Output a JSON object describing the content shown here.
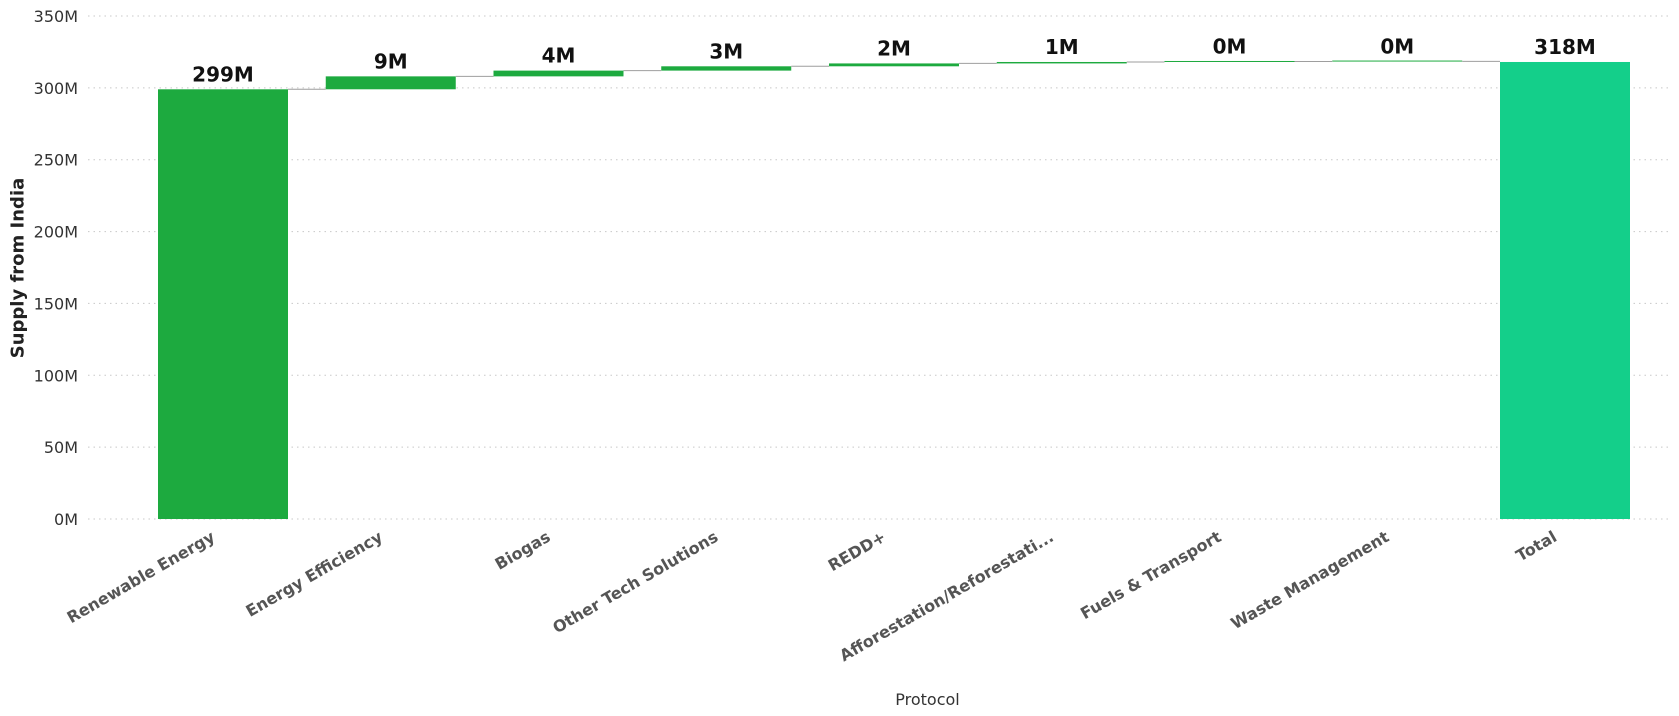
{
  "chart_data": {
    "type": "bar",
    "subtype": "waterfall",
    "xlabel": "Protocol",
    "ylabel": "Supply from India",
    "ylim": [
      0,
      350
    ],
    "y_unit_suffix": "M",
    "y_ticks": [
      "0M",
      "50M",
      "100M",
      "150M",
      "200M",
      "250M",
      "300M",
      "350M"
    ],
    "grid": true,
    "categories": [
      "Renewable Energy",
      "Energy Efficiency",
      "Biogas",
      "Other Tech Solutions",
      "REDD+",
      "Afforestation/Reforestati...",
      "Fuels & Transport",
      "Waste Management",
      "Total"
    ],
    "values": [
      299,
      9,
      4,
      3,
      2,
      1,
      0.3,
      0.1,
      318
    ],
    "data_labels": [
      "299M",
      "9M",
      "4M",
      "3M",
      "2M",
      "1M",
      "0M",
      "0M",
      "318M"
    ],
    "is_total": [
      false,
      false,
      false,
      false,
      false,
      false,
      false,
      false,
      true
    ],
    "colors": {
      "increase": "#1DAA3F",
      "total": "#14CF8A",
      "connector": "#9E9E9E",
      "grid": "#C8C8C8"
    }
  }
}
